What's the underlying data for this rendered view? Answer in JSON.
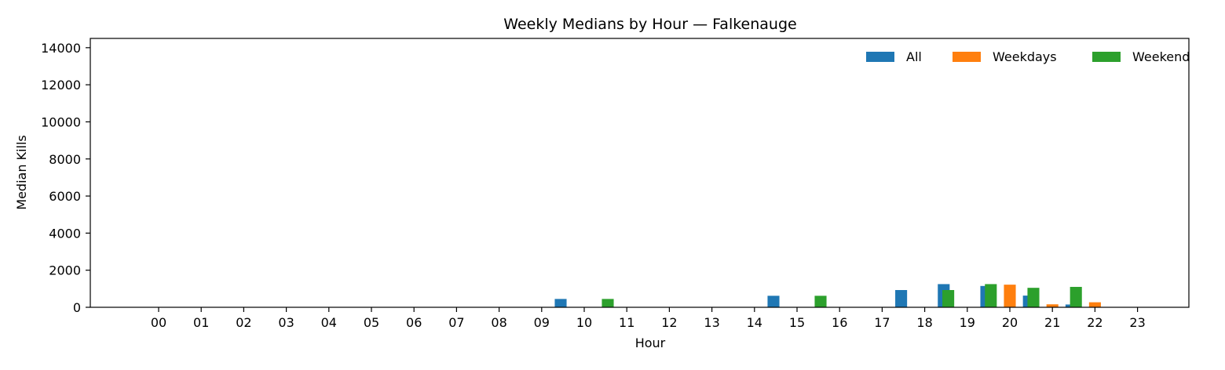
{
  "chart_data": {
    "type": "bar",
    "title": "Weekly Medians by Hour — Falkenauge",
    "xlabel": "Hour",
    "ylabel": "Median Kills",
    "ylim": [
      0,
      14500
    ],
    "yticks": [
      0,
      2000,
      4000,
      6000,
      8000,
      10000,
      12000,
      14000
    ],
    "categories": [
      "00",
      "01",
      "02",
      "03",
      "04",
      "05",
      "06",
      "07",
      "08",
      "09",
      "10",
      "11",
      "12",
      "13",
      "14",
      "15",
      "16",
      "17",
      "18",
      "19",
      "20",
      "21",
      "22",
      "23"
    ],
    "legend_position": "top-right",
    "grid": false,
    "series": [
      {
        "name": "All",
        "color": "#1f77b4",
        "values": [
          0,
          0,
          0,
          0,
          0,
          0,
          0,
          0,
          0,
          0,
          450,
          0,
          0,
          0,
          0,
          620,
          0,
          0,
          930,
          1250,
          1150,
          630,
          150,
          0
        ]
      },
      {
        "name": "Weekdays",
        "color": "#ff7f0e",
        "values": [
          0,
          0,
          0,
          0,
          0,
          0,
          0,
          0,
          0,
          0,
          0,
          0,
          0,
          0,
          0,
          0,
          0,
          0,
          0,
          0,
          1220,
          160,
          270,
          0
        ]
      },
      {
        "name": "Weekend",
        "color": "#2ca02c",
        "values": [
          0,
          0,
          0,
          0,
          0,
          0,
          0,
          0,
          0,
          0,
          450,
          0,
          0,
          0,
          0,
          620,
          0,
          0,
          930,
          1250,
          1050,
          1100,
          0,
          0
        ]
      }
    ]
  }
}
